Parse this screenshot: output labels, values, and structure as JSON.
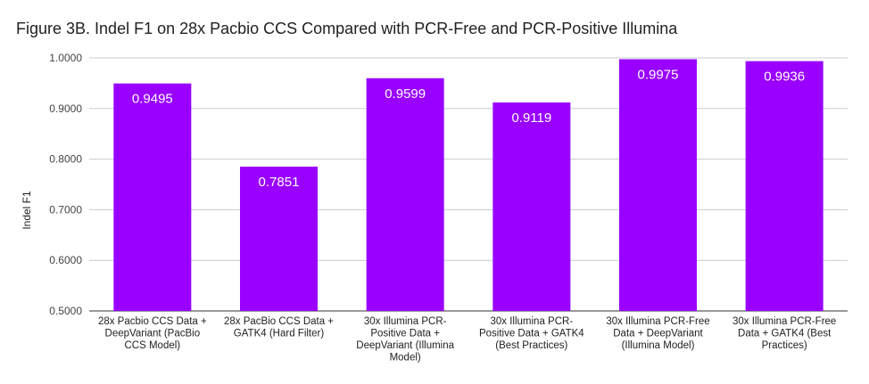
{
  "chart_data": {
    "type": "bar",
    "title": "Figure 3B. Indel F1 on 28x Pacbio CCS Compared with PCR-Free and PCR-Positive Illumina",
    "ylabel": "Indel F1",
    "xlabel": "",
    "ylim": [
      0.5,
      1.0
    ],
    "yticks": [
      "0.5000",
      "0.6000",
      "0.7000",
      "0.8000",
      "0.9000",
      "1.0000"
    ],
    "grid": true,
    "bar_color": "#9900ff",
    "categories": [
      [
        "28x Pacbio CCS Data +",
        "DeepVariant (PacBio",
        "CCS Model)"
      ],
      [
        "28x PacBio CCS Data +",
        "GATK4 (Hard Filter)"
      ],
      [
        "30x Illumina PCR-",
        "Positive Data +",
        "DeepVariant (Illumina",
        "Model)"
      ],
      [
        "30x Illumina PCR-",
        "Positive Data + GATK4",
        "(Best Practices)"
      ],
      [
        "30x Illumina PCR-Free",
        "Data + DeepVariant",
        "(Illumina Model)"
      ],
      [
        "30x Illumina PCR-Free",
        "Data + GATK4 (Best",
        "Practices)"
      ]
    ],
    "values": [
      0.9495,
      0.7851,
      0.9599,
      0.9119,
      0.9975,
      0.9936
    ],
    "data_labels": [
      "0.9495",
      "0.7851",
      "0.9599",
      "0.9119",
      "0.9975",
      "0.9936"
    ]
  }
}
